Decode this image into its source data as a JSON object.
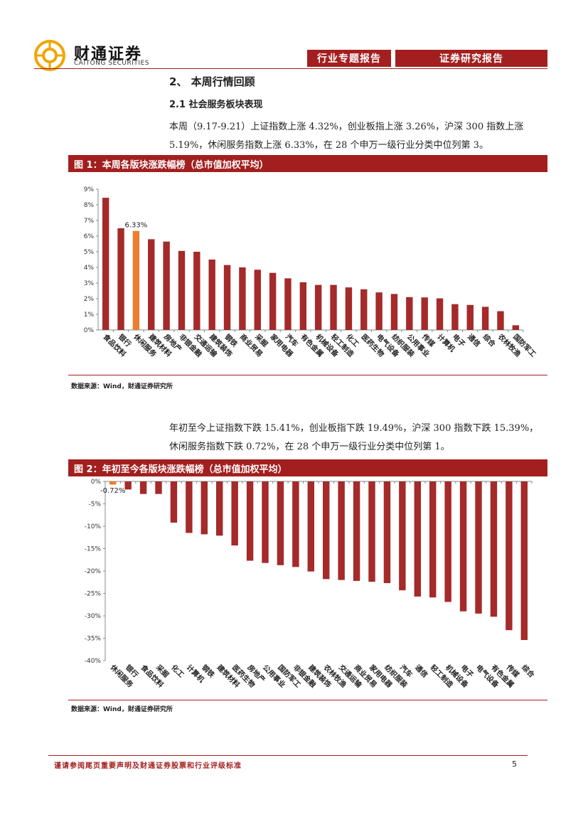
{
  "header": {
    "brand_cn": "财通证券",
    "brand_en": "CAITONG SECURITIES",
    "tab1": "行业专题报告",
    "tab2": "证券研究报告"
  },
  "section_title": "2、 本周行情回顾",
  "sub_title": "2.1  社会服务板块表现",
  "para1": "本周（9.17-9.21）上证指数上涨 4.32%，创业板指上涨 3.26%，沪深 300 指数上涨 5.19%，休闲服务指数上涨 6.33%，在 28 个申万一级行业分类中位列第 3。",
  "para2": "年初至今上证指数下跌 15.41%，创业板指下跌 19.49%，沪深 300 指数下跌 15.39%，休闲服务指数下跌 0.72%，在 28 个申万一级行业分类中位列第 1。",
  "fig1_title": "图 1：本周各版块涨跌幅榜（总市值加权平均）",
  "fig2_title": "图 2：年初至今各版块涨跌幅榜（总市值加权平均）",
  "source1": "数据来源：Wind，财通证券研究所",
  "source2": "数据来源：Wind，财通证券研究所",
  "footer": {
    "disclaimer": "谨请参阅尾页重要声明及财通证券股票和行业评级标准",
    "page_number": "5"
  },
  "colors": {
    "brand_red": "#a31f1f",
    "bar": "#a52a2a",
    "highlight": "#ed7d31",
    "logo": "#f0a500"
  },
  "chart_data": [
    {
      "type": "bar",
      "title": "图 1：本周各版块涨跌幅榜（总市值加权平均）",
      "categories": [
        "食品饮料",
        "银行",
        "休闲服务",
        "建筑材料",
        "房地产",
        "非银金融",
        "交通运输",
        "建筑装饰",
        "钢铁",
        "商业贸易",
        "采掘",
        "家用电器",
        "汽车",
        "有色金属",
        "机械设备",
        "轻工制造",
        "化工",
        "医药生物",
        "电气设备",
        "纺织服装",
        "公用事业",
        "传媒",
        "计算机",
        "电子",
        "通信",
        "综合",
        "农林牧渔",
        "国防军工"
      ],
      "values": [
        8.45,
        6.5,
        6.33,
        5.8,
        5.65,
        5.05,
        5.0,
        4.5,
        4.15,
        4.0,
        3.85,
        3.65,
        3.3,
        3.05,
        2.88,
        2.88,
        2.72,
        2.6,
        2.4,
        2.3,
        2.1,
        2.08,
        2.02,
        1.65,
        1.6,
        1.48,
        1.2,
        0.3
      ],
      "highlight_index": 2,
      "highlight_label": "6.33%",
      "ylim": [
        0,
        9
      ],
      "yticks": [
        "0%",
        "1%",
        "2%",
        "3%",
        "4%",
        "5%",
        "6%",
        "7%",
        "8%",
        "9%"
      ],
      "xlabel": "",
      "ylabel": ""
    },
    {
      "type": "bar",
      "title": "图 2：年初至今各版块涨跌幅榜（总市值加权平均）",
      "categories": [
        "休闲服务",
        "银行",
        "食品饮料",
        "采掘",
        "化工",
        "计算机",
        "钢铁",
        "建筑材料",
        "医药生物",
        "房地产",
        "公用事业",
        "国防军工",
        "非银金融",
        "建筑装饰",
        "农林牧渔",
        "交通运输",
        "商业贸易",
        "家用电器",
        "纺织服装",
        "汽车",
        "通信",
        "轻工制造",
        "机械设备",
        "电子",
        "电气设备",
        "有色金属",
        "传媒",
        "综合"
      ],
      "values": [
        -0.72,
        -1.8,
        -2.8,
        -2.8,
        -9.2,
        -11.5,
        -11.8,
        -12.1,
        -14.3,
        -17.7,
        -18.2,
        -18.7,
        -19.1,
        -20.1,
        -21.8,
        -22.0,
        -22.2,
        -22.4,
        -22.7,
        -24.3,
        -25.7,
        -25.9,
        -26.9,
        -29.0,
        -29.5,
        -30.2,
        -33.2,
        -35.4
      ],
      "highlight_index": 0,
      "highlight_label": "-0.72%",
      "ylim": [
        -40,
        0
      ],
      "yticks": [
        "0%",
        "-5%",
        "-10%",
        "-15%",
        "-20%",
        "-25%",
        "-30%",
        "-35%",
        "-40%"
      ],
      "xlabel": "",
      "ylabel": ""
    }
  ]
}
